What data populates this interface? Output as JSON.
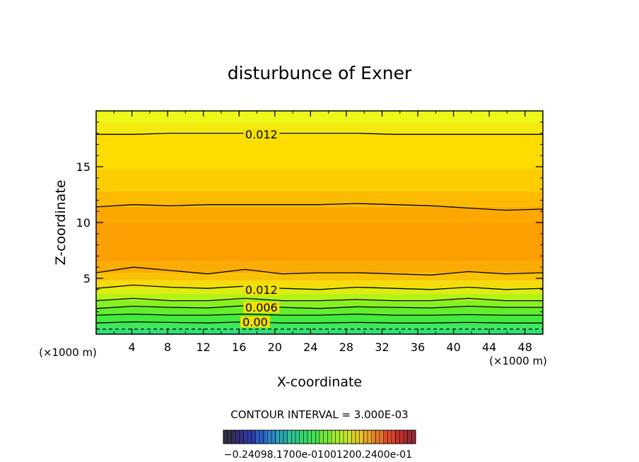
{
  "chart_data": {
    "type": "heatmap",
    "title": "disturbunce of Exner",
    "xlabel": "X-coordinate",
    "ylabel": "Z-coordinate",
    "x_unit": "(×1000 m)",
    "y_unit": "(×1000 m)",
    "xlim": [
      0,
      50
    ],
    "ylim": [
      0,
      20
    ],
    "x_ticks": [
      4,
      8,
      12,
      16,
      20,
      24,
      28,
      32,
      36,
      40,
      44,
      48
    ],
    "y_ticks": [
      5,
      10,
      15
    ],
    "contour_interval_text": "CONTOUR INTERVAL = 3.000E-03",
    "contour_labels": [
      {
        "text": "0.012",
        "x": 18.5,
        "z": 17.9
      },
      {
        "text": "0.012",
        "x": 18.5,
        "z": 4.0
      },
      {
        "text": "0.006",
        "x": 18.5,
        "z": 2.4
      },
      {
        "text": "0.00",
        "x": 17.8,
        "z": 1.1
      }
    ],
    "contours": [
      {
        "z": [
          0.45,
          0.45,
          0.45,
          0.45,
          0.45,
          0.45,
          0.45,
          0.45,
          0.45,
          0.45,
          0.45,
          0.45,
          0.45
        ],
        "dashed": true
      },
      {
        "z": [
          1.0,
          1.1,
          1.05,
          1.0,
          1.1,
          1.0,
          1.0,
          1.05,
          1.0,
          1.0,
          1.05,
          1.0,
          1.0
        ]
      },
      {
        "z": [
          1.7,
          1.8,
          1.7,
          1.7,
          1.8,
          1.7,
          1.7,
          1.8,
          1.7,
          1.7,
          1.75,
          1.7,
          1.7
        ]
      },
      {
        "z": [
          2.3,
          2.5,
          2.4,
          2.35,
          2.55,
          2.4,
          2.3,
          2.45,
          2.4,
          2.35,
          2.5,
          2.4,
          2.4
        ]
      },
      {
        "z": [
          3.0,
          3.2,
          3.0,
          3.0,
          3.2,
          3.0,
          3.0,
          3.1,
          3.0,
          3.0,
          3.2,
          3.0,
          3.0
        ]
      },
      {
        "z": [
          4.1,
          4.4,
          4.2,
          4.1,
          4.3,
          4.1,
          4.0,
          4.2,
          4.1,
          4.0,
          4.2,
          4.0,
          4.1
        ]
      },
      {
        "z": [
          5.5,
          6.0,
          5.7,
          5.4,
          5.8,
          5.4,
          5.5,
          5.5,
          5.4,
          5.3,
          5.6,
          5.4,
          5.5
        ]
      },
      {
        "z": [
          11.4,
          11.6,
          11.5,
          11.6,
          11.6,
          11.6,
          11.6,
          11.7,
          11.6,
          11.5,
          11.3,
          11.1,
          11.2
        ]
      },
      {
        "z": [
          17.9,
          17.9,
          18.0,
          18.0,
          18.0,
          18.0,
          18.0,
          18.0,
          17.9,
          17.9,
          17.9,
          17.9,
          17.9
        ]
      }
    ],
    "bands": [
      {
        "z0": 0.0,
        "z1": 0.45,
        "color": "#2fe07a"
      },
      {
        "z0": 0.45,
        "z1": 1.05,
        "color": "#3ee85a"
      },
      {
        "z0": 1.05,
        "z1": 1.75,
        "color": "#44ea3c"
      },
      {
        "z0": 1.75,
        "z1": 2.4,
        "color": "#62ee2a"
      },
      {
        "z0": 2.4,
        "z1": 3.05,
        "color": "#88f020"
      },
      {
        "z0": 3.05,
        "z1": 3.6,
        "color": "#b4f214"
      },
      {
        "z0": 3.6,
        "z1": 4.15,
        "color": "#dcee10"
      },
      {
        "z0": 4.15,
        "z1": 4.8,
        "color": "#f4dc08"
      },
      {
        "z0": 4.8,
        "z1": 5.5,
        "color": "#fac204"
      },
      {
        "z0": 5.5,
        "z1": 6.5,
        "color": "#fbac02"
      },
      {
        "z0": 6.5,
        "z1": 10.0,
        "color": "#fc9f00"
      },
      {
        "z0": 10.0,
        "z1": 11.4,
        "color": "#fca800"
      },
      {
        "z0": 11.4,
        "z1": 12.8,
        "color": "#fcba00"
      },
      {
        "z0": 12.8,
        "z1": 14.8,
        "color": "#fdcd00"
      },
      {
        "z0": 14.8,
        "z1": 17.9,
        "color": "#fedc00"
      },
      {
        "z0": 17.9,
        "z1": 19.0,
        "color": "#f4ea10"
      },
      {
        "z0": 19.0,
        "z1": 20.0,
        "color": "#eef818"
      }
    ],
    "colorbar": {
      "label_text": "−0.24098.1700e-01001200.2400e-01",
      "colors": [
        "#303048",
        "#342e7a",
        "#2e3aa8",
        "#2a5ec4",
        "#2a86c8",
        "#2aa8b0",
        "#2ec494",
        "#34d66e",
        "#46e050",
        "#70e83a",
        "#a0ec30",
        "#c6e62a",
        "#e0cc2a",
        "#e8a62a",
        "#e8782a",
        "#de4a2a",
        "#c4302a",
        "#9a2a34"
      ]
    }
  }
}
